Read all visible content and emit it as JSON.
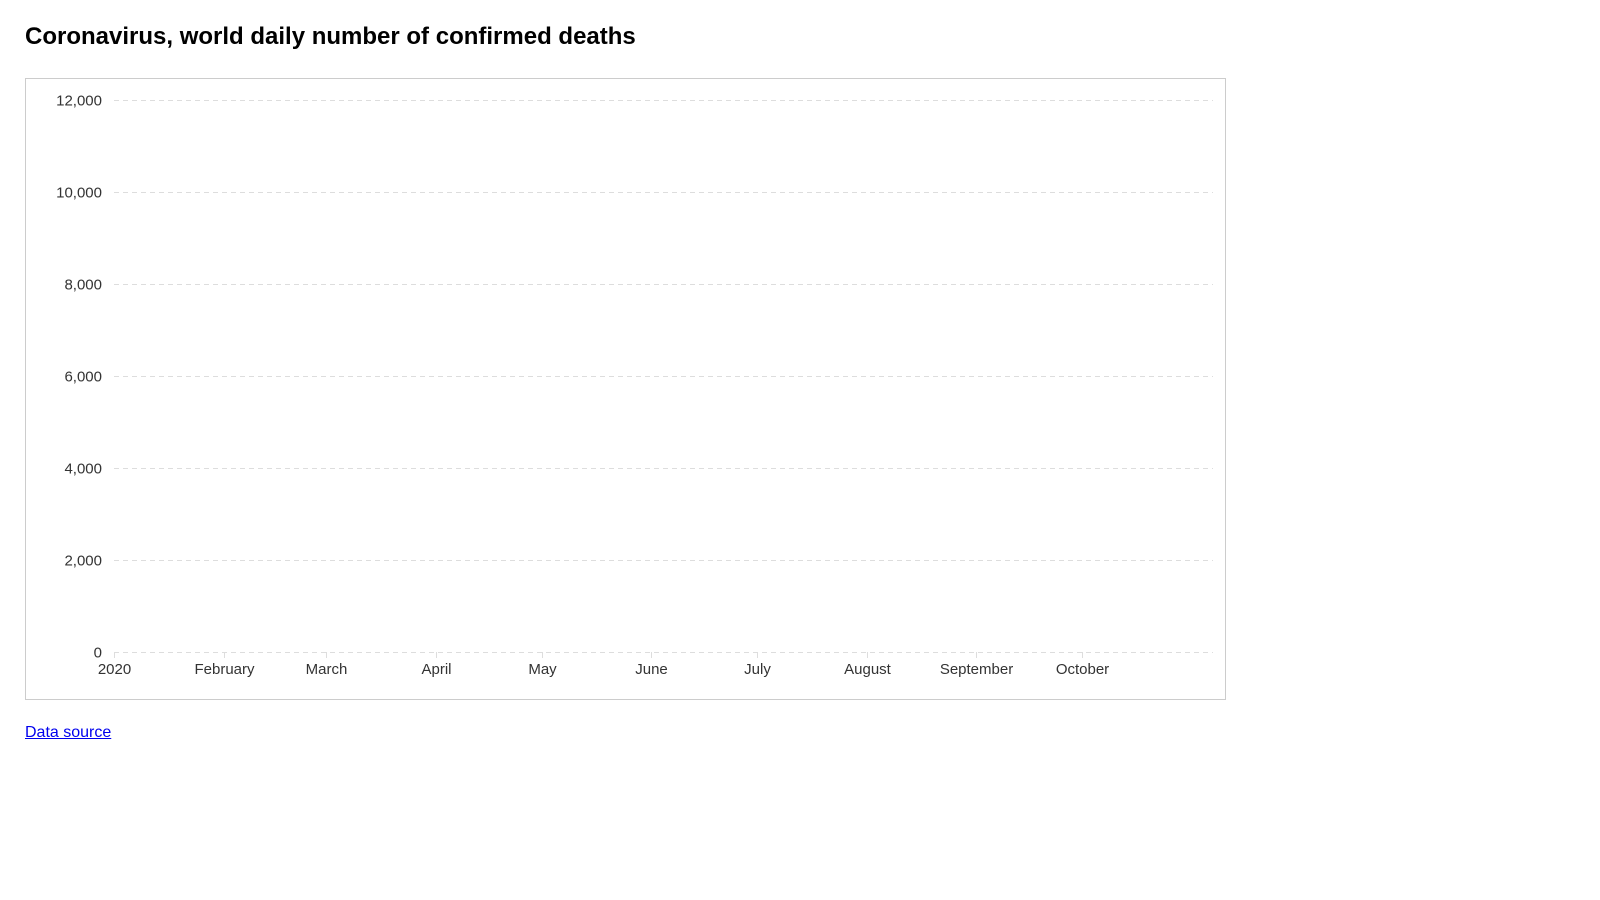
{
  "page": {
    "title": "Coronavirus, world daily number of confirmed deaths",
    "data_source_label": "Data source"
  },
  "chart_data": {
    "type": "line",
    "title": "Coronavirus, world daily number of confirmed deaths",
    "xlabel": "",
    "ylabel": "",
    "x_axis": {
      "type": "date",
      "range": [
        "2020-01-01",
        "2020-11-07"
      ],
      "ticks": [
        {
          "date": "2020-01-01",
          "label": "2020"
        },
        {
          "date": "2020-02-01",
          "label": "February"
        },
        {
          "date": "2020-03-01",
          "label": "March"
        },
        {
          "date": "2020-04-01",
          "label": "April"
        },
        {
          "date": "2020-05-01",
          "label": "May"
        },
        {
          "date": "2020-06-01",
          "label": "June"
        },
        {
          "date": "2020-07-01",
          "label": "July"
        },
        {
          "date": "2020-08-01",
          "label": "August"
        },
        {
          "date": "2020-09-01",
          "label": "September"
        },
        {
          "date": "2020-10-01",
          "label": "October"
        }
      ]
    },
    "y_axis": {
      "ylim": [
        0,
        12000
      ],
      "ticks": [
        {
          "value": 0,
          "label": "0"
        },
        {
          "value": 2000,
          "label": "2,000"
        },
        {
          "value": 4000,
          "label": "4,000"
        },
        {
          "value": 6000,
          "label": "6,000"
        },
        {
          "value": 8000,
          "label": "8,000"
        },
        {
          "value": 10000,
          "label": "10,000"
        },
        {
          "value": 12000,
          "label": "12,000"
        }
      ]
    },
    "grid": true,
    "grid_style": "dashed-horizontal",
    "series": [],
    "colors": {
      "grid": "#dddddd",
      "tick_text": "#333333",
      "frame": "#cccccc",
      "link": "#0000ee"
    }
  }
}
